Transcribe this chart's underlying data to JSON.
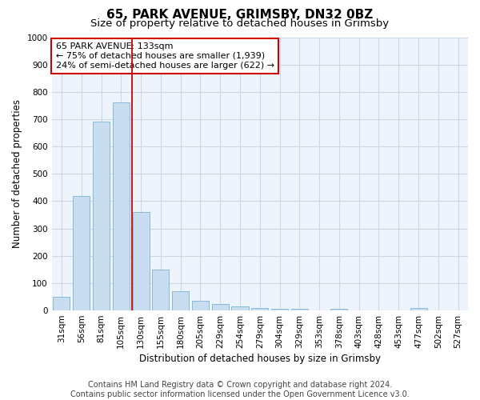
{
  "title1": "65, PARK AVENUE, GRIMSBY, DN32 0BZ",
  "title2": "Size of property relative to detached houses in Grimsby",
  "xlabel": "Distribution of detached houses by size in Grimsby",
  "ylabel": "Number of detached properties",
  "categories": [
    "31sqm",
    "56sqm",
    "81sqm",
    "105sqm",
    "130sqm",
    "155sqm",
    "180sqm",
    "205sqm",
    "229sqm",
    "254sqm",
    "279sqm",
    "304sqm",
    "329sqm",
    "353sqm",
    "378sqm",
    "403sqm",
    "428sqm",
    "453sqm",
    "477sqm",
    "502sqm",
    "527sqm"
  ],
  "values": [
    50,
    420,
    690,
    760,
    360,
    150,
    70,
    35,
    25,
    15,
    10,
    5,
    5,
    0,
    5,
    0,
    0,
    0,
    10,
    0,
    0
  ],
  "bar_color": "#c8ddf0",
  "bar_edge_color": "#7ab3d4",
  "highlight_line_color": "#cc0000",
  "annotation_box_text_line1": "65 PARK AVENUE: 133sqm",
  "annotation_box_text_line2": "← 75% of detached houses are smaller (1,939)",
  "annotation_box_text_line3": "24% of semi-detached houses are larger (622) →",
  "annotation_box_color": "#cc0000",
  "annotation_box_bg": "#ffffff",
  "ylim": [
    0,
    1000
  ],
  "yticks": [
    0,
    100,
    200,
    300,
    400,
    500,
    600,
    700,
    800,
    900,
    1000
  ],
  "grid_color": "#c8d8e8",
  "footer_line1": "Contains HM Land Registry data © Crown copyright and database right 2024.",
  "footer_line2": "Contains public sector information licensed under the Open Government Licence v3.0.",
  "title1_fontsize": 11,
  "title2_fontsize": 9.5,
  "xlabel_fontsize": 8.5,
  "ylabel_fontsize": 8.5,
  "tick_fontsize": 7.5,
  "footer_fontsize": 7,
  "bg_color": "#eef4fb"
}
